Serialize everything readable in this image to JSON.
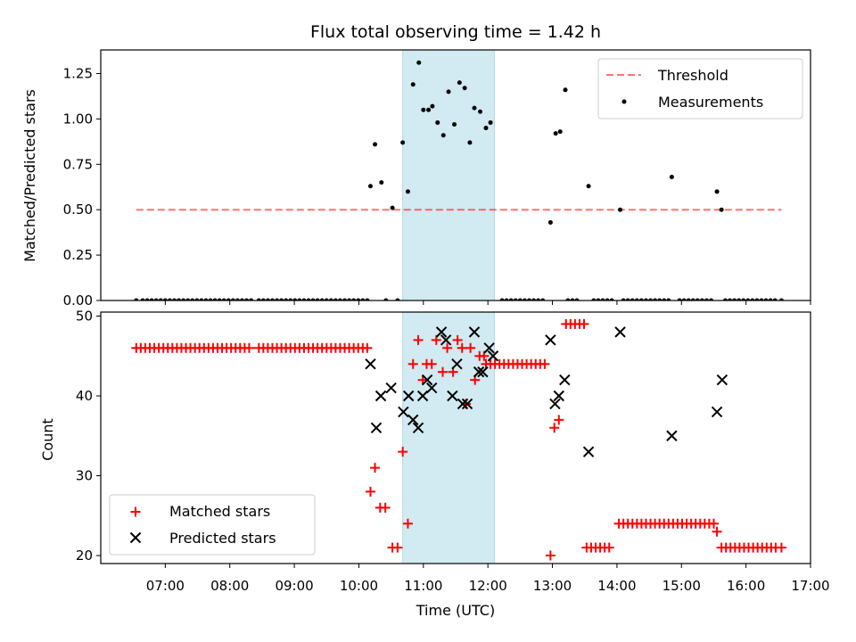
{
  "chart_data": {
    "type": "scatter",
    "title": "Flux total observing time = 1.42 h",
    "xlabel": "Time (UTC)",
    "xlim": [
      6.0,
      17.0
    ],
    "xticks": [
      {
        "value": 7,
        "label": "07:00"
      },
      {
        "value": 8,
        "label": "08:00"
      },
      {
        "value": 9,
        "label": "09:00"
      },
      {
        "value": 10,
        "label": "10:00"
      },
      {
        "value": 11,
        "label": "11:00"
      },
      {
        "value": 12,
        "label": "12:00"
      },
      {
        "value": 13,
        "label": "13:00"
      },
      {
        "value": 14,
        "label": "14:00"
      },
      {
        "value": 15,
        "label": "15:00"
      },
      {
        "value": 16,
        "label": "16:00"
      },
      {
        "value": 17,
        "label": "17:00"
      }
    ],
    "highlight_span": {
      "x": [
        10.68,
        12.1
      ],
      "color": "#add8e6"
    },
    "panels": [
      {
        "ylabel": "Matched/Predicted stars",
        "ylim": [
          0,
          1.38
        ],
        "yticks": [
          {
            "value": 0.0,
            "label": "0.00"
          },
          {
            "value": 0.25,
            "label": "0.25"
          },
          {
            "value": 0.5,
            "label": "0.50"
          },
          {
            "value": 0.75,
            "label": "0.75"
          },
          {
            "value": 1.0,
            "label": "1.00"
          },
          {
            "value": 1.25,
            "label": "1.25"
          }
        ],
        "legend": {
          "position": "top-right",
          "entries": [
            "Threshold",
            "Measurements"
          ]
        },
        "threshold": {
          "name": "Threshold",
          "y": 0.5,
          "x": [
            6.55,
            16.55
          ],
          "color": "#ff0000",
          "style": "dashed"
        },
        "measurements": {
          "name": "Measurements",
          "color": "#000000",
          "zero_x": [
            6.55,
            6.65,
            6.72,
            6.79,
            6.86,
            6.93,
            7.0,
            7.07,
            7.14,
            7.21,
            7.28,
            7.35,
            7.42,
            7.49,
            7.56,
            7.63,
            7.7,
            7.77,
            7.84,
            7.91,
            7.98,
            8.05,
            8.12,
            8.19,
            8.26,
            8.33,
            8.45,
            8.52,
            8.59,
            8.66,
            8.73,
            8.8,
            8.87,
            8.94,
            9.01,
            9.08,
            9.15,
            9.22,
            9.29,
            9.36,
            9.43,
            9.5,
            9.57,
            9.64,
            9.71,
            9.78,
            9.85,
            9.92,
            9.99,
            10.06,
            10.13,
            10.42,
            10.6,
            12.22,
            12.29,
            12.36,
            12.43,
            12.5,
            12.57,
            12.64,
            12.71,
            12.78,
            12.85,
            13.24,
            13.31,
            13.38,
            13.64,
            13.71,
            13.78,
            13.85,
            13.92,
            14.1,
            14.17,
            14.24,
            14.31,
            14.38,
            14.45,
            14.52,
            14.59,
            14.66,
            14.73,
            14.8,
            14.97,
            15.04,
            15.11,
            15.18,
            15.25,
            15.32,
            15.39,
            15.46,
            15.68,
            15.75,
            15.82,
            15.89,
            15.96,
            16.03,
            16.1,
            16.17,
            16.24,
            16.31,
            16.38,
            16.45,
            16.55
          ],
          "points": [
            [
              10.18,
              0.63
            ],
            [
              10.25,
              0.86
            ],
            [
              10.35,
              0.65
            ],
            [
              10.52,
              0.51
            ],
            [
              10.68,
              0.87
            ],
            [
              10.76,
              0.6
            ],
            [
              10.84,
              1.19
            ],
            [
              10.93,
              1.31
            ],
            [
              11.0,
              1.05
            ],
            [
              11.08,
              1.05
            ],
            [
              11.14,
              1.07
            ],
            [
              11.22,
              0.98
            ],
            [
              11.31,
              0.91
            ],
            [
              11.39,
              1.15
            ],
            [
              11.48,
              0.97
            ],
            [
              11.56,
              1.2
            ],
            [
              11.64,
              1.17
            ],
            [
              11.72,
              0.87
            ],
            [
              11.79,
              1.06
            ],
            [
              11.88,
              1.04
            ],
            [
              11.97,
              0.95
            ],
            [
              12.04,
              0.98
            ],
            [
              12.97,
              0.43
            ],
            [
              13.05,
              0.92
            ],
            [
              13.12,
              0.93
            ],
            [
              13.2,
              1.16
            ],
            [
              13.56,
              0.63
            ],
            [
              14.05,
              0.5
            ],
            [
              14.85,
              0.68
            ],
            [
              15.55,
              0.6
            ],
            [
              15.62,
              0.5
            ]
          ]
        }
      },
      {
        "ylabel": "Count",
        "ylim": [
          19,
          50.5
        ],
        "yticks": [
          {
            "value": 20,
            "label": "20"
          },
          {
            "value": 30,
            "label": "30"
          },
          {
            "value": 40,
            "label": "40"
          },
          {
            "value": 50,
            "label": "50"
          }
        ],
        "legend": {
          "position": "bottom-left",
          "entries": [
            "Matched stars",
            "Predicted stars"
          ]
        },
        "series": [
          {
            "name": "Matched stars",
            "marker": "plus",
            "color": "#ff0000",
            "points": [
              [
                6.55,
                46
              ],
              [
                6.62,
                46
              ],
              [
                6.69,
                46
              ],
              [
                6.76,
                46
              ],
              [
                6.83,
                46
              ],
              [
                6.9,
                46
              ],
              [
                6.97,
                46
              ],
              [
                7.04,
                46
              ],
              [
                7.11,
                46
              ],
              [
                7.18,
                46
              ],
              [
                7.25,
                46
              ],
              [
                7.32,
                46
              ],
              [
                7.39,
                46
              ],
              [
                7.46,
                46
              ],
              [
                7.53,
                46
              ],
              [
                7.6,
                46
              ],
              [
                7.67,
                46
              ],
              [
                7.74,
                46
              ],
              [
                7.81,
                46
              ],
              [
                7.88,
                46
              ],
              [
                7.95,
                46
              ],
              [
                8.02,
                46
              ],
              [
                8.09,
                46
              ],
              [
                8.16,
                46
              ],
              [
                8.23,
                46
              ],
              [
                8.3,
                46
              ],
              [
                8.45,
                46
              ],
              [
                8.52,
                46
              ],
              [
                8.59,
                46
              ],
              [
                8.66,
                46
              ],
              [
                8.73,
                46
              ],
              [
                8.8,
                46
              ],
              [
                8.87,
                46
              ],
              [
                8.94,
                46
              ],
              [
                9.01,
                46
              ],
              [
                9.08,
                46
              ],
              [
                9.15,
                46
              ],
              [
                9.22,
                46
              ],
              [
                9.29,
                46
              ],
              [
                9.36,
                46
              ],
              [
                9.43,
                46
              ],
              [
                9.5,
                46
              ],
              [
                9.57,
                46
              ],
              [
                9.64,
                46
              ],
              [
                9.71,
                46
              ],
              [
                9.78,
                46
              ],
              [
                9.85,
                46
              ],
              [
                9.92,
                46
              ],
              [
                9.99,
                46
              ],
              [
                10.06,
                46
              ],
              [
                10.13,
                46
              ],
              [
                10.18,
                28
              ],
              [
                10.25,
                31
              ],
              [
                10.33,
                26
              ],
              [
                10.41,
                26
              ],
              [
                10.52,
                21
              ],
              [
                10.6,
                21
              ],
              [
                10.68,
                33
              ],
              [
                10.76,
                24
              ],
              [
                10.84,
                44
              ],
              [
                10.92,
                47
              ],
              [
                10.99,
                42
              ],
              [
                11.05,
                44
              ],
              [
                11.13,
                44
              ],
              [
                11.2,
                47
              ],
              [
                11.3,
                43
              ],
              [
                11.37,
                46
              ],
              [
                11.46,
                43
              ],
              [
                11.53,
                47
              ],
              [
                11.6,
                46
              ],
              [
                11.66,
                39
              ],
              [
                11.73,
                46
              ],
              [
                11.8,
                42
              ],
              [
                11.87,
                45
              ],
              [
                11.94,
                45
              ],
              [
                11.97,
                44
              ],
              [
                12.04,
                44
              ],
              [
                12.11,
                44
              ],
              [
                12.18,
                44
              ],
              [
                12.25,
                44
              ],
              [
                12.32,
                44
              ],
              [
                12.39,
                44
              ],
              [
                12.46,
                44
              ],
              [
                12.53,
                44
              ],
              [
                12.6,
                44
              ],
              [
                12.67,
                44
              ],
              [
                12.74,
                44
              ],
              [
                12.81,
                44
              ],
              [
                12.88,
                44
              ],
              [
                12.97,
                20
              ],
              [
                13.03,
                36
              ],
              [
                13.1,
                37
              ],
              [
                13.21,
                49
              ],
              [
                13.28,
                49
              ],
              [
                13.35,
                49
              ],
              [
                13.42,
                49
              ],
              [
                13.49,
                49
              ],
              [
                13.53,
                21
              ],
              [
                13.6,
                21
              ],
              [
                13.67,
                21
              ],
              [
                13.74,
                21
              ],
              [
                13.81,
                21
              ],
              [
                13.88,
                21
              ],
              [
                14.03,
                24
              ],
              [
                14.1,
                24
              ],
              [
                14.17,
                24
              ],
              [
                14.24,
                24
              ],
              [
                14.31,
                24
              ],
              [
                14.38,
                24
              ],
              [
                14.45,
                24
              ],
              [
                14.52,
                24
              ],
              [
                14.59,
                24
              ],
              [
                14.66,
                24
              ],
              [
                14.73,
                24
              ],
              [
                14.8,
                24
              ],
              [
                14.87,
                24
              ],
              [
                14.94,
                24
              ],
              [
                15.01,
                24
              ],
              [
                15.08,
                24
              ],
              [
                15.15,
                24
              ],
              [
                15.22,
                24
              ],
              [
                15.29,
                24
              ],
              [
                15.36,
                24
              ],
              [
                15.43,
                24
              ],
              [
                15.5,
                24
              ],
              [
                15.55,
                23
              ],
              [
                15.62,
                21
              ],
              [
                15.69,
                21
              ],
              [
                15.76,
                21
              ],
              [
                15.83,
                21
              ],
              [
                15.9,
                21
              ],
              [
                15.97,
                21
              ],
              [
                16.04,
                21
              ],
              [
                16.11,
                21
              ],
              [
                16.18,
                21
              ],
              [
                16.25,
                21
              ],
              [
                16.32,
                21
              ],
              [
                16.39,
                21
              ],
              [
                16.46,
                21
              ],
              [
                16.55,
                21
              ]
            ]
          },
          {
            "name": "Predicted stars",
            "marker": "x",
            "color": "#000000",
            "points": [
              [
                10.18,
                44
              ],
              [
                10.27,
                36
              ],
              [
                10.34,
                40
              ],
              [
                10.5,
                41
              ],
              [
                10.69,
                38
              ],
              [
                10.77,
                40
              ],
              [
                10.84,
                37
              ],
              [
                10.92,
                36
              ],
              [
                10.99,
                40
              ],
              [
                11.06,
                42
              ],
              [
                11.13,
                41
              ],
              [
                11.28,
                48
              ],
              [
                11.35,
                47
              ],
              [
                11.45,
                40
              ],
              [
                11.52,
                44
              ],
              [
                11.61,
                39
              ],
              [
                11.68,
                39
              ],
              [
                11.79,
                48
              ],
              [
                11.86,
                43
              ],
              [
                11.92,
                43
              ],
              [
                12.02,
                46
              ],
              [
                12.08,
                45
              ],
              [
                12.97,
                47
              ],
              [
                13.04,
                39
              ],
              [
                13.1,
                40
              ],
              [
                13.19,
                42
              ],
              [
                13.56,
                33
              ],
              [
                14.05,
                48
              ],
              [
                14.85,
                35
              ],
              [
                15.55,
                38
              ],
              [
                15.63,
                42
              ]
            ]
          }
        ]
      }
    ]
  }
}
